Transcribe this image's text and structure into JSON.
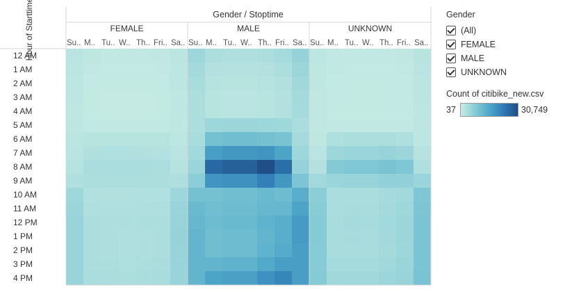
{
  "header": {
    "title": "Gender / Stoptime",
    "row_axis": "Hour of Starttime"
  },
  "legend": {
    "title": "Gender",
    "items": [
      "(All)",
      "FEMALE",
      "MALE",
      "UNKNOWN"
    ],
    "color_title": "Count of citibike_new.csv",
    "color_min_label": "37",
    "color_max_label": "30,749"
  },
  "chart_data": {
    "type": "heatmap",
    "title": "Gender / Stoptime",
    "row_label": "Hour of Starttime",
    "groups": [
      "FEMALE",
      "MALE",
      "UNKNOWN"
    ],
    "columns": [
      "Su..",
      "M..",
      "Tu..",
      "W..",
      "Th..",
      "Fri..",
      "Sa.."
    ],
    "rows": [
      "12 AM",
      "1 AM",
      "2 AM",
      "3 AM",
      "4 AM",
      "5 AM",
      "6 AM",
      "7 AM",
      "8 AM",
      "9 AM",
      "10 AM",
      "11 AM",
      "12 PM",
      "1 PM",
      "2 PM",
      "3 PM",
      "4 PM"
    ],
    "color_range": [
      37,
      30749
    ],
    "colors": [
      "#c9ece4",
      "#86cbd6",
      "#4ea8c8",
      "#2f7ab5",
      "#204e86"
    ],
    "values": {
      "FEMALE": [
        [
          1900,
          1200,
          1000,
          1000,
          1000,
          1100,
          1700
        ],
        [
          1600,
          900,
          800,
          800,
          800,
          900,
          1500
        ],
        [
          1500,
          800,
          700,
          700,
          700,
          800,
          1400
        ],
        [
          1400,
          700,
          600,
          600,
          600,
          700,
          1300
        ],
        [
          1300,
          700,
          600,
          600,
          600,
          700,
          1200
        ],
        [
          1400,
          1000,
          1000,
          1000,
          1000,
          1000,
          1300
        ],
        [
          1600,
          2000,
          2000,
          2000,
          2000,
          2000,
          1500
        ],
        [
          1900,
          2800,
          2900,
          2900,
          2800,
          2700,
          1800
        ],
        [
          2200,
          3500,
          3600,
          3600,
          3600,
          3400,
          2200
        ],
        [
          3000,
          3400,
          3300,
          3300,
          3300,
          3200,
          3100
        ],
        [
          4800,
          2900,
          2800,
          2800,
          2900,
          2900,
          5000
        ],
        [
          5400,
          3000,
          2900,
          2900,
          3000,
          3100,
          5600
        ],
        [
          5600,
          3200,
          3100,
          3100,
          3200,
          3300,
          5800
        ],
        [
          5700,
          3200,
          3100,
          3000,
          3100,
          3300,
          5900
        ],
        [
          5700,
          3200,
          3100,
          3000,
          3100,
          3300,
          5800
        ],
        [
          5600,
          3300,
          3200,
          3100,
          3200,
          3500,
          5700
        ],
        [
          5600,
          3600,
          3500,
          3400,
          3600,
          3800,
          5600
        ]
      ],
      "MALE": [
        [
          5000,
          3200,
          3000,
          3000,
          3300,
          4000,
          6000
        ],
        [
          4200,
          2500,
          2300,
          2300,
          2500,
          3200,
          5200
        ],
        [
          3700,
          2200,
          2000,
          2000,
          2200,
          2800,
          4600
        ],
        [
          3400,
          2000,
          1800,
          1800,
          2000,
          2600,
          4300
        ],
        [
          3200,
          2000,
          1800,
          1800,
          2000,
          2500,
          4000
        ],
        [
          3400,
          5000,
          5200,
          5200,
          5000,
          4800,
          3600
        ],
        [
          3800,
          10000,
          10500,
          10500,
          10000,
          9500,
          4000
        ],
        [
          4500,
          17000,
          18000,
          18000,
          18500,
          16000,
          5000
        ],
        [
          5500,
          26000,
          27500,
          27500,
          30749,
          25000,
          6000
        ],
        [
          7000,
          18500,
          19000,
          19000,
          22000,
          18000,
          9000
        ],
        [
          10000,
          10000,
          10500,
          10500,
          11500,
          11000,
          14000
        ],
        [
          11500,
          10500,
          11000,
          11000,
          12000,
          12000,
          16000
        ],
        [
          12000,
          11000,
          11500,
          11500,
          13000,
          14000,
          17500
        ],
        [
          12500,
          10500,
          11000,
          11000,
          12500,
          14000,
          17500
        ],
        [
          12500,
          10500,
          11000,
          11000,
          13000,
          14500,
          17000
        ],
        [
          12500,
          12500,
          13000,
          13000,
          15000,
          17000,
          17000
        ],
        [
          12500,
          16000,
          16500,
          16500,
          19000,
          21000,
          17000
        ]
      ],
      "UNKNOWN": [
        [
          1500,
          1000,
          1000,
          1000,
          1000,
          1100,
          2000
        ],
        [
          1300,
          900,
          800,
          800,
          800,
          900,
          1800
        ],
        [
          1200,
          800,
          700,
          700,
          700,
          800,
          1700
        ],
        [
          1100,
          800,
          700,
          700,
          700,
          800,
          1600
        ],
        [
          1100,
          700,
          700,
          700,
          700,
          800,
          1500
        ],
        [
          1100,
          1000,
          1000,
          1000,
          1000,
          1000,
          1400
        ],
        [
          1300,
          3000,
          3200,
          3200,
          3200,
          3000,
          1500
        ],
        [
          1800,
          5000,
          5500,
          5500,
          5800,
          5200,
          2200
        ],
        [
          2500,
          8000,
          8500,
          8500,
          9500,
          8500,
          3000
        ],
        [
          4500,
          5500,
          5800,
          5800,
          6500,
          6500,
          5500
        ],
        [
          7000,
          3500,
          3600,
          3600,
          4000,
          4500,
          8500
        ],
        [
          7500,
          3600,
          3700,
          3700,
          4200,
          4800,
          9000
        ],
        [
          7800,
          3800,
          4000,
          3900,
          4500,
          5200,
          9200
        ],
        [
          7800,
          3700,
          3900,
          3800,
          4400,
          5200,
          9300
        ],
        [
          7700,
          3700,
          3800,
          3700,
          4300,
          5100,
          9200
        ],
        [
          7700,
          4000,
          4100,
          4000,
          4600,
          5400,
          9300
        ],
        [
          7800,
          4600,
          4700,
          4600,
          5200,
          5800,
          9400
        ]
      ]
    }
  }
}
